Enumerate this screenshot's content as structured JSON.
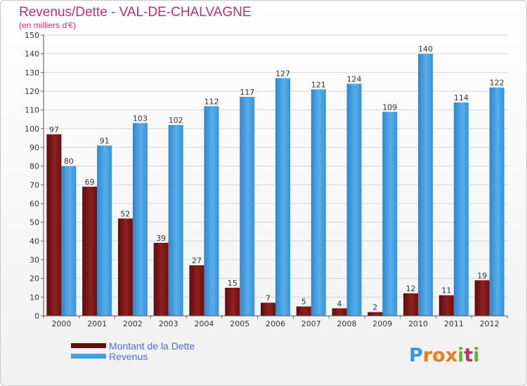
{
  "chart_data": {
    "type": "bar",
    "title": "Revenus/Dette - VAL-DE-CHALVAGNE",
    "subtitle": "(en milliers d'€)",
    "categories": [
      "2000",
      "2001",
      "2002",
      "2003",
      "2004",
      "2005",
      "2006",
      "2007",
      "2008",
      "2009",
      "2010",
      "2011",
      "2012"
    ],
    "series": [
      {
        "name": "Montant de la Dette",
        "color": "#8b1a1a",
        "values": [
          97,
          69,
          52,
          39,
          27,
          15,
          7,
          5,
          4,
          2,
          12,
          11,
          19
        ]
      },
      {
        "name": "Revenus",
        "color": "#4a9fe0",
        "values": [
          80,
          91,
          103,
          102,
          112,
          117,
          127,
          121,
          124,
          109,
          140,
          114,
          122
        ]
      }
    ],
    "yticks": [
      0,
      10,
      20,
      30,
      40,
      50,
      60,
      70,
      80,
      90,
      100,
      110,
      120,
      130,
      140,
      150
    ],
    "ylim": [
      0,
      150
    ],
    "grid": true,
    "legend_position": "bottom-left"
  },
  "logo": {
    "letters": [
      "P",
      "r",
      "o",
      "x",
      "i",
      "t",
      "i"
    ],
    "colors": [
      "#2e9be0",
      "#e67e22",
      "#e67e22",
      "#e67e22",
      "#5cb82e",
      "#c0306a",
      "#5cb82e"
    ]
  }
}
